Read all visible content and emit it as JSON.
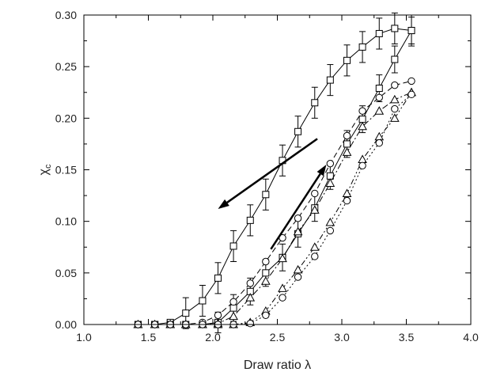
{
  "chart_data": {
    "type": "scatter",
    "xlabel": "Draw ratio λ",
    "ylabel": "χ",
    "ylabel_sub": "c",
    "xlim": [
      1.0,
      4.0
    ],
    "ylim": [
      0.0,
      0.3
    ],
    "xticks": [
      "1.0",
      "1.5",
      "2.0",
      "2.5",
      "3.0",
      "3.5",
      "4.0"
    ],
    "yticks": [
      "0.00",
      "0.05",
      "0.10",
      "0.15",
      "0.20",
      "0.25",
      "0.30"
    ],
    "grid": false,
    "annotations": [
      {
        "type": "arrow",
        "from": [
          2.81,
          0.18
        ],
        "to": [
          2.04,
          0.112
        ]
      },
      {
        "type": "arrow",
        "from": [
          2.45,
          0.073
        ],
        "to": [
          2.88,
          0.155
        ]
      }
    ],
    "series": [
      {
        "marker": "square",
        "line": "solid",
        "color": "#000000",
        "x": [
          1.42,
          1.55,
          1.67,
          1.79,
          1.92,
          2.04,
          2.16,
          2.29,
          2.41,
          2.54,
          2.66,
          2.79,
          2.91,
          3.04,
          3.16,
          3.29,
          3.41,
          3.54
        ],
        "y": [
          0.0,
          0.0,
          0.002,
          0.011,
          0.023,
          0.045,
          0.076,
          0.101,
          0.126,
          0.159,
          0.187,
          0.215,
          0.237,
          0.256,
          0.269,
          0.282,
          0.287,
          0.285
        ],
        "err": [
          0,
          0,
          0,
          0.015,
          0.015,
          0.015,
          0.015,
          0.015,
          0.015,
          0.015,
          0.015,
          0.015,
          0.015,
          0.015,
          0.015,
          0.015,
          0.015,
          0.015
        ]
      },
      {
        "marker": "square",
        "line": "solid",
        "color": "#000000",
        "x": [
          1.42,
          1.55,
          1.67,
          1.79,
          1.92,
          2.04,
          2.16,
          2.29,
          2.41,
          2.54,
          2.66,
          2.79,
          2.91,
          3.04,
          3.16,
          3.29,
          3.41,
          3.54
        ],
        "y": [
          0.0,
          0.0,
          0.0,
          0.0,
          0.0,
          0.002,
          0.016,
          0.032,
          0.05,
          0.065,
          0.088,
          0.113,
          0.144,
          0.175,
          0.199,
          0.229,
          0.257,
          0.285
        ],
        "err": [
          0,
          0,
          0,
          0,
          0,
          0.01,
          0.013,
          0.013,
          0.013,
          0.013,
          0.013,
          0.013,
          0.013,
          0.013,
          0.013,
          0.013,
          0.013,
          0.013
        ]
      },
      {
        "marker": "circle",
        "line": "dashed",
        "color": "#000000",
        "x": [
          1.42,
          1.55,
          1.67,
          1.79,
          1.92,
          2.04,
          2.16,
          2.29,
          2.41,
          2.54,
          2.66,
          2.79,
          2.91,
          3.04,
          3.16,
          3.29,
          3.41,
          3.54
        ],
        "y": [
          0.0,
          0.0,
          0.0,
          0.0,
          0.002,
          0.009,
          0.022,
          0.04,
          0.061,
          0.084,
          0.103,
          0.127,
          0.156,
          0.183,
          0.207,
          0.22,
          0.232,
          0.236
        ]
      },
      {
        "marker": "triangle",
        "line": "dashdot",
        "color": "#000000",
        "x": [
          1.42,
          1.55,
          1.67,
          1.79,
          1.92,
          2.04,
          2.16,
          2.29,
          2.41,
          2.54,
          2.66,
          2.79,
          2.91,
          3.04,
          3.16,
          3.29,
          3.41,
          3.54
        ],
        "y": [
          0.0,
          0.0,
          0.0,
          0.0,
          0.0,
          0.001,
          0.008,
          0.026,
          0.042,
          0.064,
          0.09,
          0.111,
          0.137,
          0.167,
          0.192,
          0.207,
          0.218,
          0.225
        ]
      },
      {
        "marker": "triangle",
        "line": "dashdotdot",
        "color": "#000000",
        "x": [
          1.42,
          1.55,
          1.67,
          1.79,
          1.92,
          2.04,
          2.16,
          2.29,
          2.41,
          2.54,
          2.66,
          2.79,
          2.91,
          3.04,
          3.16,
          3.29,
          3.41,
          3.54
        ],
        "y": [
          0.0,
          0.0,
          0.0,
          0.0,
          0.0,
          0.0,
          0.0,
          0.002,
          0.013,
          0.035,
          0.053,
          0.075,
          0.099,
          0.127,
          0.16,
          0.182,
          0.2,
          0.225
        ]
      },
      {
        "marker": "circle",
        "line": "dotted",
        "color": "#000000",
        "x": [
          1.42,
          1.55,
          1.67,
          1.79,
          1.92,
          2.04,
          2.16,
          2.29,
          2.41,
          2.54,
          2.66,
          2.79,
          2.91,
          3.04,
          3.16,
          3.29,
          3.41,
          3.54
        ],
        "y": [
          0.0,
          0.0,
          0.0,
          0.0,
          0.0,
          0.0,
          0.0,
          0.001,
          0.009,
          0.026,
          0.046,
          0.066,
          0.091,
          0.12,
          0.154,
          0.176,
          0.209,
          0.223
        ]
      }
    ]
  }
}
